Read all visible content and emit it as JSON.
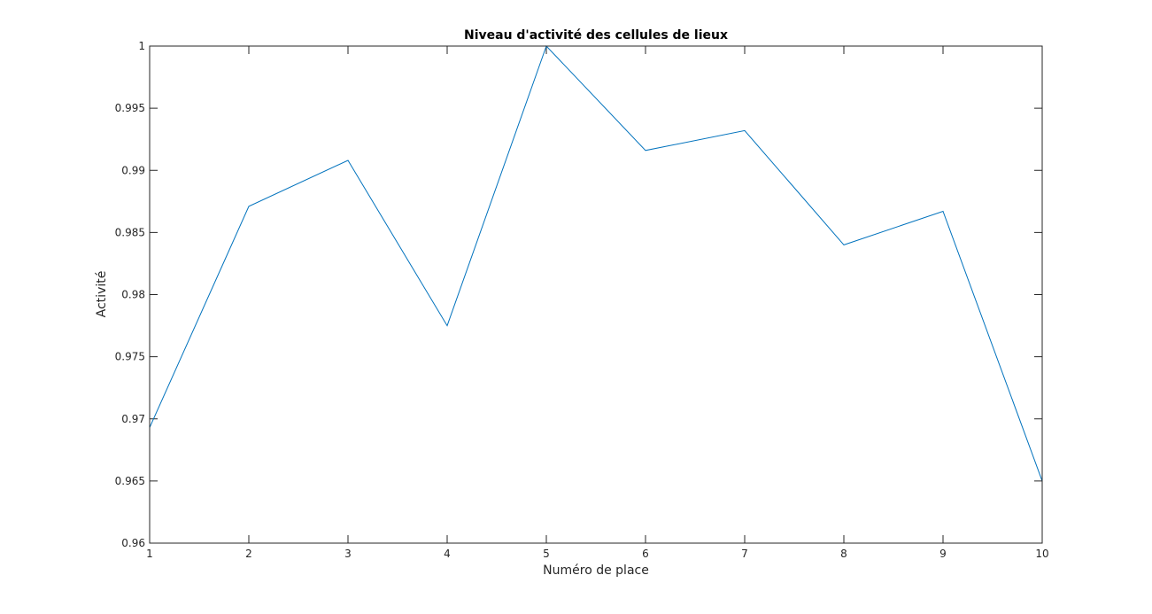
{
  "colors": {
    "series": "#0072bd",
    "axes": "#262626",
    "background": "#ffffff"
  },
  "chart_data": {
    "type": "line",
    "title": "Niveau d'activité des cellules de lieux",
    "xlabel": "Numéro de place",
    "ylabel": "Activité",
    "xlim": [
      1,
      10
    ],
    "ylim": [
      0.96,
      1
    ],
    "grid": false,
    "x_ticks": [
      "1",
      "2",
      "3",
      "4",
      "5",
      "6",
      "7",
      "8",
      "9",
      "10"
    ],
    "y_ticks": [
      "0.96",
      "0.965",
      "0.97",
      "0.975",
      "0.98",
      "0.985",
      "0.99",
      "0.995",
      "1"
    ],
    "x": [
      1,
      2,
      3,
      4,
      5,
      6,
      7,
      8,
      9,
      10
    ],
    "series": [
      {
        "values": [
          0.9693,
          0.9871,
          0.9908,
          0.9775,
          1.0,
          0.9916,
          0.9932,
          0.984,
          0.9867,
          0.965
        ]
      }
    ]
  }
}
